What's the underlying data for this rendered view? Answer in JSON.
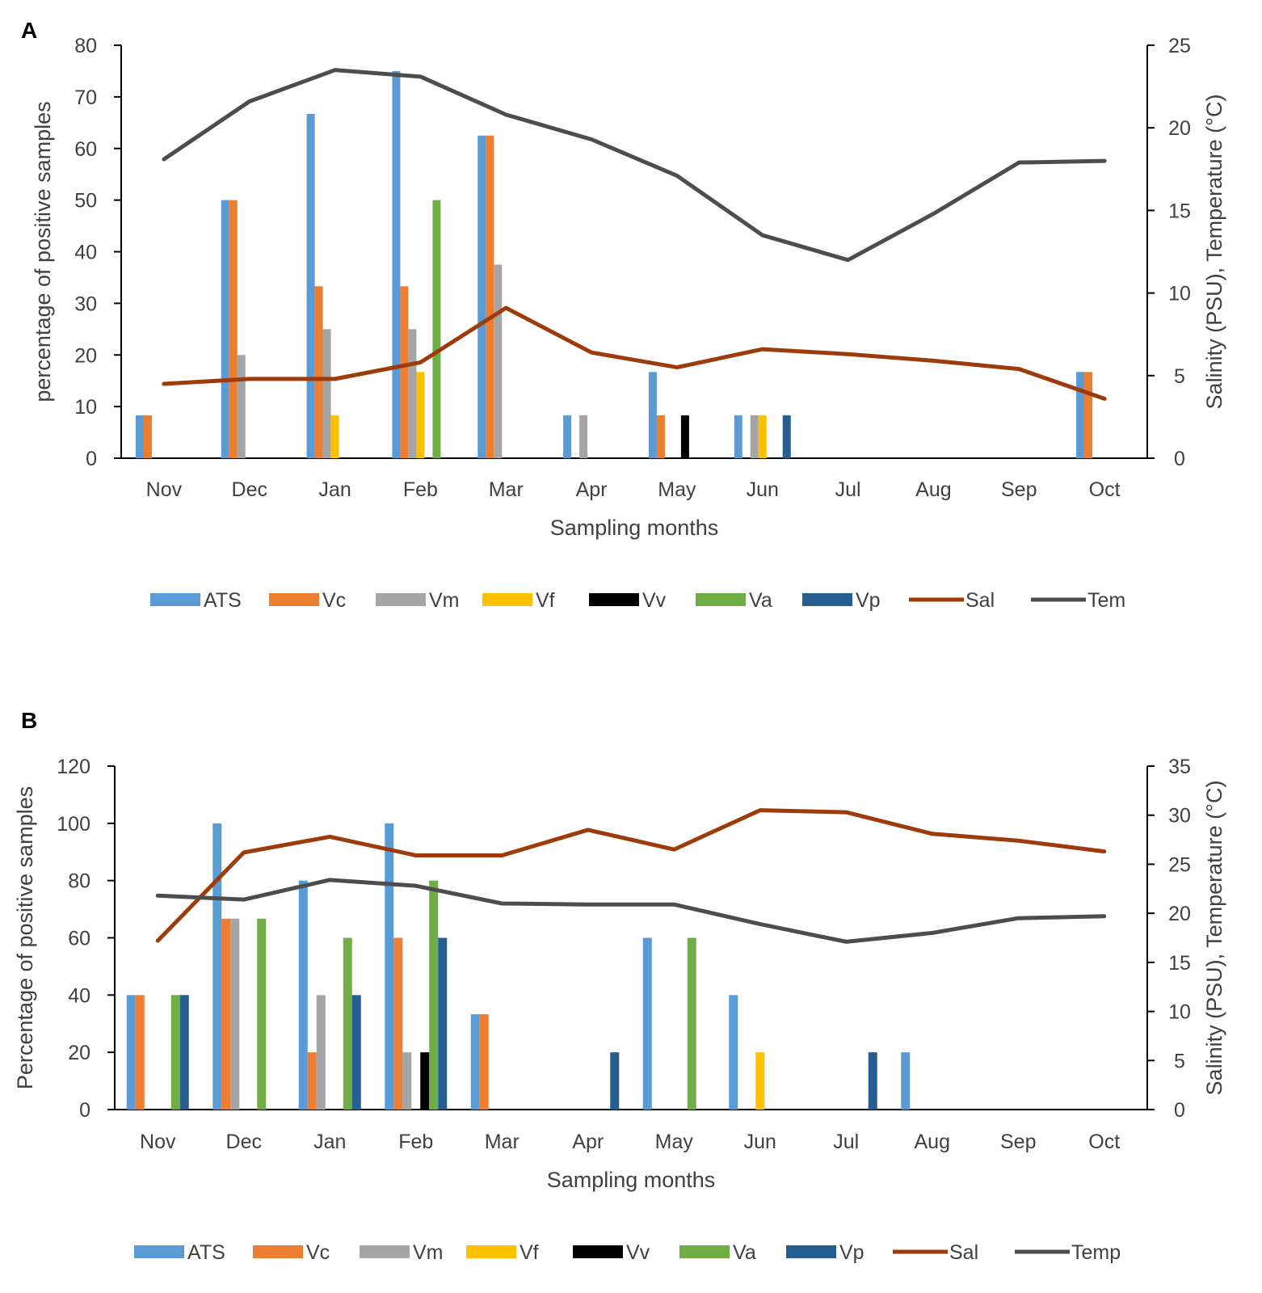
{
  "colors": {
    "ATS": "#5B9BD5",
    "Vc": "#ED7D31",
    "Vm": "#A5A5A5",
    "Vf": "#FFC000",
    "Vv": "#000000",
    "Va": "#70AD47",
    "Vp": "#255E91",
    "Sal": "#9E3B0A",
    "Tem": "#4D4D4D",
    "axis": "#000000",
    "text": "#404040"
  },
  "chart_data": [
    {
      "panel": "A",
      "type": "bar",
      "xlabel": "Sampling months",
      "ylabel": "percentage of positive samples",
      "y2label": "Salinity (PSU), Temperature (°C)",
      "ylim": [
        0,
        80
      ],
      "yticks": [
        0,
        10,
        20,
        30,
        40,
        50,
        60,
        70,
        80
      ],
      "y2lim": [
        0,
        25
      ],
      "y2ticks": [
        0,
        5,
        10,
        15,
        20,
        25
      ],
      "categories": [
        "Nov",
        "Dec",
        "Jan",
        "Feb",
        "Mar",
        "Apr",
        "May",
        "Jun",
        "Jul",
        "Aug",
        "Sep",
        "Oct"
      ],
      "series": [
        {
          "name": "ATS",
          "values": [
            8.3,
            50,
            66.7,
            75,
            62.5,
            8.3,
            16.7,
            8.3,
            0,
            0,
            0,
            16.7
          ]
        },
        {
          "name": "Vc",
          "values": [
            8.3,
            50,
            33.3,
            33.3,
            62.5,
            0,
            8.3,
            0,
            0,
            0,
            0,
            16.7
          ]
        },
        {
          "name": "Vm",
          "values": [
            0,
            20,
            25,
            25,
            37.5,
            8.3,
            0,
            8.3,
            0,
            0,
            0,
            0
          ]
        },
        {
          "name": "Vf",
          "values": [
            0,
            0,
            8.3,
            16.7,
            0,
            0,
            0,
            8.3,
            0,
            0,
            0,
            0
          ]
        },
        {
          "name": "Vv",
          "values": [
            0,
            0,
            0,
            0,
            0,
            0,
            8.3,
            0,
            0,
            0,
            0,
            0
          ]
        },
        {
          "name": "Va",
          "values": [
            0,
            0,
            0,
            50,
            0,
            0,
            0,
            0,
            0,
            0,
            0,
            0
          ]
        },
        {
          "name": "Vp",
          "values": [
            0,
            0,
            0,
            0,
            0,
            0,
            0,
            8.3,
            0,
            0,
            0,
            0
          ]
        }
      ],
      "lines": [
        {
          "name": "Sal",
          "values": [
            4.5,
            4.8,
            4.8,
            5.8,
            9.1,
            6.4,
            5.5,
            6.6,
            6.3,
            5.9,
            5.4,
            3.6
          ]
        },
        {
          "name": "Tem",
          "values": [
            18.1,
            21.6,
            23.5,
            23.1,
            20.8,
            19.3,
            17.1,
            13.5,
            12.0,
            14.8,
            17.9,
            18.0
          ]
        }
      ],
      "legend": [
        "ATS",
        "Vc",
        "Vm",
        "Vf",
        "Vv",
        "Va",
        "Vp",
        "Sal",
        "Tem"
      ],
      "legend_position": "bottom"
    },
    {
      "panel": "B",
      "type": "bar",
      "xlabel": "Sampling months",
      "ylabel": "Percentage of positive samples",
      "y2label": "Salinity (PSU), Temperature (°C)",
      "ylim": [
        0,
        120
      ],
      "yticks": [
        0,
        20,
        40,
        60,
        80,
        100,
        120
      ],
      "y2lim": [
        0,
        35
      ],
      "y2ticks": [
        0,
        5,
        10,
        15,
        20,
        25,
        30,
        35
      ],
      "categories": [
        "Nov",
        "Dec",
        "Jan",
        "Feb",
        "Mar",
        "Apr",
        "May",
        "Jun",
        "Jul",
        "Aug",
        "Sep",
        "Oct"
      ],
      "series": [
        {
          "name": "ATS",
          "values": [
            40,
            100,
            80,
            100,
            33.3,
            0,
            60,
            40,
            0,
            20,
            0,
            0
          ]
        },
        {
          "name": "Vc",
          "values": [
            40,
            66.7,
            20,
            60,
            33.3,
            0,
            0,
            0,
            0,
            0,
            0,
            0
          ]
        },
        {
          "name": "Vm",
          "values": [
            0,
            66.7,
            40,
            20,
            0,
            0,
            0,
            0,
            0,
            0,
            0,
            0
          ]
        },
        {
          "name": "Vf",
          "values": [
            0,
            0,
            0,
            0,
            0,
            0,
            0,
            20,
            0,
            0,
            0,
            0
          ]
        },
        {
          "name": "Vv",
          "values": [
            0,
            0,
            0,
            20,
            0,
            0,
            0,
            0,
            0,
            0,
            0,
            0
          ]
        },
        {
          "name": "Va",
          "values": [
            40,
            66.7,
            60,
            80,
            0,
            0,
            60,
            0,
            0,
            0,
            0,
            0
          ]
        },
        {
          "name": "Vp",
          "values": [
            40,
            0,
            40,
            60,
            0,
            20,
            0,
            0,
            20,
            0,
            0,
            0
          ]
        }
      ],
      "lines": [
        {
          "name": "Sal",
          "values": [
            17.2,
            26.2,
            27.8,
            25.9,
            25.9,
            28.5,
            26.5,
            30.5,
            30.3,
            28.1,
            27.4,
            26.3
          ]
        },
        {
          "name": "Temp",
          "values": [
            21.8,
            21.4,
            23.4,
            22.8,
            21.0,
            20.9,
            20.9,
            18.9,
            17.1,
            18.0,
            19.5,
            19.7
          ]
        }
      ],
      "legend": [
        "ATS",
        "Vc",
        "Vm",
        "Vf",
        "Vv",
        "Va",
        "Vp",
        "Sal",
        "Temp"
      ],
      "legend_position": "bottom"
    }
  ]
}
